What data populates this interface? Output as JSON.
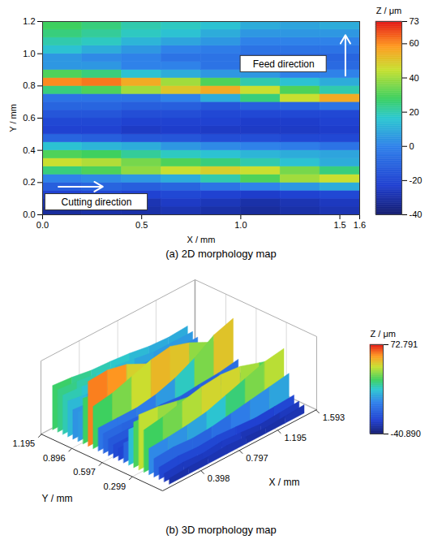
{
  "chart_data": [
    {
      "type": "heatmap",
      "caption": "(a) 2D morphology map",
      "x_label": "X / mm",
      "y_label": "Y / mm",
      "xlim": [
        0,
        1.6
      ],
      "ylim": [
        0,
        1.2
      ],
      "xticks": [
        {
          "value": 0,
          "label": "0.0"
        },
        0.5,
        {
          "value": 1,
          "label": "1.0"
        },
        1.5,
        1.6
      ],
      "yticks": [
        {
          "value": 0,
          "label": "0.0"
        },
        0.2,
        0.4,
        0.6,
        0.8,
        {
          "value": 1,
          "label": "1.0"
        },
        1.2
      ],
      "grid": false,
      "annotations": [
        {
          "text": "Feed direction"
        },
        {
          "text": "Cutting direction"
        }
      ],
      "x_edges": [
        0,
        0.2,
        0.4,
        0.6,
        0.8,
        1,
        1.2,
        1.4,
        1.6
      ],
      "y_edges": [
        0,
        0.05,
        0.1,
        0.15,
        0.2,
        0.25,
        0.3,
        0.35,
        0.4,
        0.45,
        0.5,
        0.55,
        0.6,
        0.65,
        0.7,
        0.75,
        0.8,
        0.85,
        0.9,
        0.95,
        1,
        1.05,
        1.1,
        1.15,
        1.2
      ],
      "z": [
        [
          -32,
          -30,
          -30,
          -28,
          -30,
          -32,
          -30,
          -28
        ],
        [
          -28,
          -26,
          -28,
          -25,
          -27,
          -30,
          -28,
          -26
        ],
        [
          -22,
          -20,
          -22,
          -20,
          -22,
          -24,
          -22,
          -20
        ],
        [
          -12,
          -10,
          -12,
          -10,
          -5,
          0,
          5,
          10
        ],
        [
          0,
          2,
          5,
          10,
          20,
          30,
          40,
          45
        ],
        [
          25,
          30,
          38,
          45,
          48,
          45,
          35,
          25
        ],
        [
          45,
          42,
          35,
          30,
          25,
          20,
          15,
          10
        ],
        [
          30,
          28,
          22,
          18,
          15,
          12,
          10,
          8
        ],
        [
          15,
          12,
          10,
          5,
          2,
          0,
          -2,
          -5
        ],
        [
          -10,
          -12,
          -15,
          -15,
          -18,
          -18,
          -20,
          -20
        ],
        [
          -22,
          -22,
          -25,
          -24,
          -25,
          -25,
          -25,
          -24
        ],
        [
          -20,
          -20,
          -22,
          -22,
          -22,
          -24,
          -24,
          -22
        ],
        [
          -15,
          -15,
          -18,
          -18,
          -20,
          -20,
          -20,
          -20
        ],
        [
          -10,
          -10,
          -12,
          -12,
          -15,
          -12,
          -10,
          -5
        ],
        [
          -5,
          -5,
          -5,
          0,
          10,
          25,
          45,
          55
        ],
        [
          25,
          30,
          40,
          50,
          55,
          45,
          30,
          20
        ],
        [
          60,
          62,
          55,
          40,
          30,
          20,
          15,
          10
        ],
        [
          30,
          25,
          15,
          10,
          5,
          5,
          0,
          0
        ],
        [
          5,
          5,
          0,
          0,
          -5,
          -5,
          -5,
          -8
        ],
        [
          5,
          2,
          0,
          -5,
          -5,
          -8,
          -10,
          -10
        ],
        [
          15,
          10,
          5,
          0,
          -2,
          -5,
          -5,
          -5
        ],
        [
          20,
          18,
          12,
          8,
          5,
          0,
          0,
          0
        ],
        [
          25,
          22,
          18,
          15,
          10,
          5,
          5,
          5
        ],
        [
          28,
          25,
          20,
          18,
          15,
          10,
          8,
          10
        ]
      ],
      "colorbar": {
        "label": "Z / μm",
        "range": [
          -40,
          73
        ],
        "ticks": [
          -40,
          -20,
          0,
          20,
          40,
          60,
          73
        ]
      }
    },
    {
      "type": "surface3d",
      "caption": "(b) 3D morphology map",
      "x_label": "X / mm",
      "y_label": "Y / mm",
      "xlim": [
        0,
        1.6
      ],
      "ylim": [
        0,
        1.2
      ],
      "xticks": [
        0.398,
        0.797,
        1.195,
        1.593
      ],
      "yticks": [
        0.299,
        0.597,
        0.896,
        1.195
      ],
      "grid": true,
      "x_edges": [
        0,
        0.2,
        0.4,
        0.6,
        0.8,
        1,
        1.2,
        1.4,
        1.6
      ],
      "y_edges": [
        0,
        0.05,
        0.1,
        0.15,
        0.2,
        0.25,
        0.3,
        0.35,
        0.4,
        0.45,
        0.5,
        0.55,
        0.6,
        0.65,
        0.7,
        0.75,
        0.8,
        0.85,
        0.9,
        0.95,
        1,
        1.05,
        1.1,
        1.15,
        1.2
      ],
      "z": [
        [
          -32,
          -30,
          -30,
          -28,
          -30,
          -32,
          -30,
          -28
        ],
        [
          -28,
          -26,
          -28,
          -25,
          -27,
          -30,
          -28,
          -26
        ],
        [
          -22,
          -20,
          -22,
          -20,
          -22,
          -24,
          -22,
          -20
        ],
        [
          -12,
          -10,
          -12,
          -10,
          -5,
          0,
          5,
          10
        ],
        [
          0,
          2,
          5,
          10,
          20,
          30,
          40,
          45
        ],
        [
          25,
          30,
          38,
          45,
          48,
          45,
          35,
          25
        ],
        [
          45,
          42,
          35,
          30,
          25,
          20,
          15,
          10
        ],
        [
          30,
          28,
          22,
          18,
          15,
          12,
          10,
          8
        ],
        [
          15,
          12,
          10,
          5,
          2,
          0,
          -2,
          -5
        ],
        [
          -10,
          -12,
          -15,
          -15,
          -18,
          -18,
          -20,
          -20
        ],
        [
          -22,
          -22,
          -25,
          -24,
          -25,
          -25,
          -25,
          -24
        ],
        [
          -20,
          -20,
          -22,
          -22,
          -22,
          -24,
          -24,
          -22
        ],
        [
          -15,
          -15,
          -18,
          -18,
          -20,
          -20,
          -20,
          -20
        ],
        [
          -10,
          -10,
          -12,
          -12,
          -15,
          -12,
          -10,
          -5
        ],
        [
          -5,
          -5,
          -5,
          0,
          10,
          25,
          45,
          55
        ],
        [
          25,
          30,
          40,
          50,
          55,
          45,
          30,
          20
        ],
        [
          60,
          62,
          55,
          40,
          30,
          20,
          15,
          10
        ],
        [
          30,
          25,
          15,
          10,
          5,
          5,
          0,
          0
        ],
        [
          5,
          5,
          0,
          0,
          -5,
          -5,
          -5,
          -8
        ],
        [
          5,
          2,
          0,
          -5,
          -5,
          -8,
          -10,
          -10
        ],
        [
          15,
          10,
          5,
          0,
          -2,
          -5,
          -5,
          -5
        ],
        [
          20,
          18,
          12,
          8,
          5,
          0,
          0,
          0
        ],
        [
          25,
          22,
          18,
          15,
          10,
          5,
          5,
          5
        ],
        [
          28,
          25,
          20,
          18,
          15,
          10,
          8,
          10
        ]
      ],
      "colorbar": {
        "label": "Z / μm",
        "range": [
          -40.89,
          72.791
        ],
        "ticks": [
          72.791,
          {
            "value": -40.89,
            "label": "-40.890"
          }
        ]
      }
    }
  ]
}
